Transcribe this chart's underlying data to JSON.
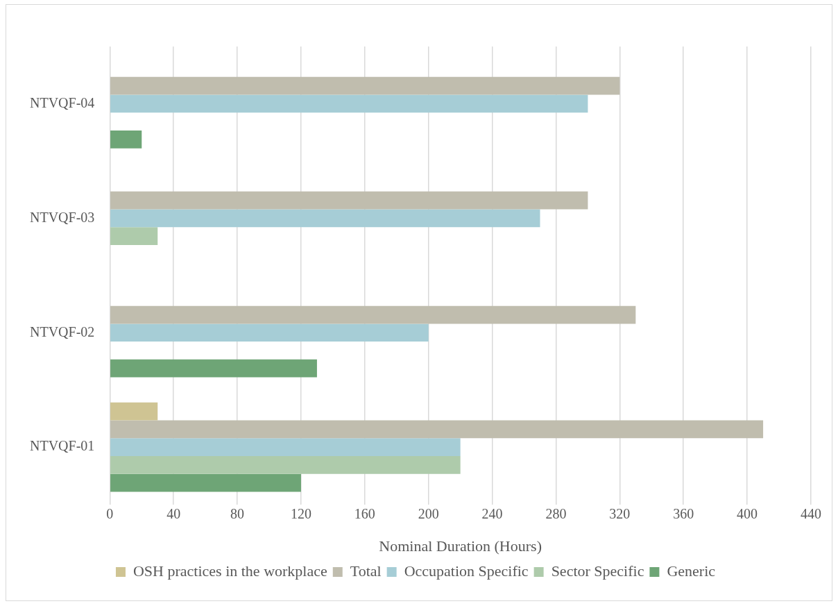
{
  "chart_data": {
    "type": "bar",
    "orientation": "horizontal",
    "xlabel": "Nominal Duration (Hours)",
    "categories": [
      "NTVQF-04",
      "NTVQF-03",
      "NTVQF-02",
      "NTVQF-01"
    ],
    "series": [
      {
        "name": "OSH practices in the workplace",
        "color": "#cfc493",
        "values": [
          null,
          null,
          null,
          30
        ]
      },
      {
        "name": "Total",
        "color": "#c0bdae",
        "values": [
          320,
          300,
          330,
          410
        ]
      },
      {
        "name": "Occupation Specific",
        "color": "#a6cdd6",
        "values": [
          300,
          270,
          200,
          220
        ]
      },
      {
        "name": "Sector Specific",
        "color": "#aecbab",
        "values": [
          null,
          30,
          null,
          220
        ]
      },
      {
        "name": "Generic",
        "color": "#6ea576",
        "values": [
          20,
          null,
          130,
          120
        ]
      }
    ],
    "xlim": [
      0,
      440
    ],
    "xticks": [
      0,
      40,
      80,
      120,
      160,
      200,
      240,
      280,
      320,
      360,
      400,
      440
    ],
    "grid": "x",
    "legend": "bottom"
  }
}
